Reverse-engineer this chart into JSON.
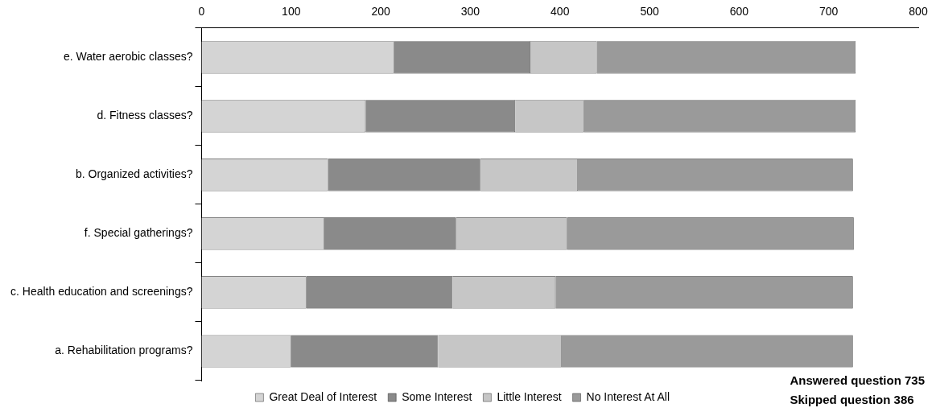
{
  "chart_data": {
    "type": "bar",
    "orientation": "horizontal",
    "stacked": true,
    "categories": [
      "e. Water aerobic classes?",
      "d. Fitness classes?",
      "b. Organized activities?",
      "f. Special gatherings?",
      "c. Health education and screenings?",
      "a. Rehabilitation programs?"
    ],
    "series": [
      {
        "name": "Great Deal of Interest",
        "color": "#d4d4d4",
        "values": [
          215,
          183,
          141,
          137,
          117,
          100
        ]
      },
      {
        "name": "Some Interest",
        "color": "#8a8a8a",
        "values": [
          152,
          167,
          170,
          147,
          163,
          164
        ]
      },
      {
        "name": "Little Interest",
        "color": "#c6c6c6",
        "values": [
          74,
          77,
          109,
          124,
          115,
          138
        ]
      },
      {
        "name": "No Interest At All",
        "color": "#9a9a9a",
        "values": [
          289,
          303,
          307,
          320,
          332,
          325
        ]
      }
    ],
    "xlim": [
      0,
      800
    ],
    "xticks": [
      0,
      100,
      200,
      300,
      400,
      500,
      600,
      700,
      800
    ],
    "legend": "bottom",
    "annotations": [
      "Answered question 735",
      "Skipped question 386"
    ]
  }
}
